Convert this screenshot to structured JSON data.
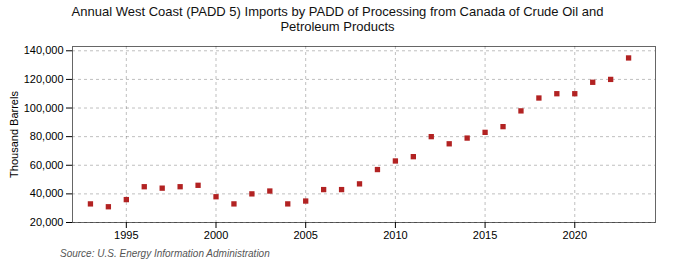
{
  "chart_data": {
    "type": "scatter",
    "title": "Annual West Coast (PADD 5) Imports by PADD of Processing from Canada of Crude Oil and\nPetroleum Products",
    "ylabel": "Thousand Barrels",
    "annotations": [
      "Source: U.S. Energy Information Administration"
    ],
    "x": [
      1993,
      1994,
      1995,
      1996,
      1997,
      1998,
      1999,
      2000,
      2001,
      2002,
      2003,
      2004,
      2005,
      2006,
      2007,
      2008,
      2009,
      2010,
      2011,
      2012,
      2013,
      2014,
      2015,
      2016,
      2017,
      2018,
      2019,
      2020,
      2021,
      2022,
      2023
    ],
    "values": [
      33000,
      31000,
      36000,
      45000,
      44000,
      45000,
      46000,
      38000,
      33000,
      40000,
      42000,
      33000,
      35000,
      43000,
      43000,
      47000,
      57000,
      63000,
      66000,
      80000,
      75000,
      79000,
      83000,
      87000,
      98000,
      107000,
      110000,
      110000,
      118000,
      120000,
      135000
    ],
    "color": "#b22222",
    "marker": "square",
    "xlim": [
      1992,
      2024.5
    ],
    "xticks": [
      1995,
      2000,
      2005,
      2010,
      2015,
      2020
    ],
    "ylim": [
      20000,
      143000
    ],
    "yticks": [
      {
        "value": 20000,
        "label": "20,000"
      },
      {
        "value": 40000,
        "label": "40,000"
      },
      {
        "value": 60000,
        "label": "60,000"
      },
      {
        "value": 80000,
        "label": "80,000"
      },
      {
        "value": 100000,
        "label": "100,000"
      },
      {
        "value": 120000,
        "label": "120,000"
      },
      {
        "value": 140000,
        "label": "140,000"
      }
    ],
    "grid": true
  }
}
